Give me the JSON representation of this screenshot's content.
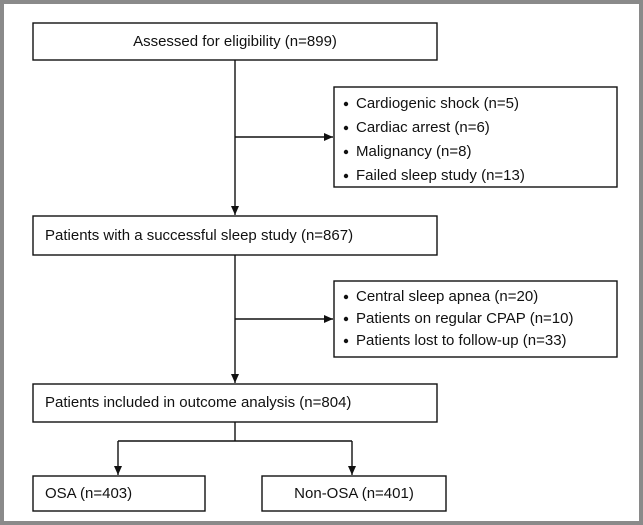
{
  "nodes": [
    {
      "label": "Assessed for eligibility (n=899)"
    },
    {
      "label": "Patients with a successful sleep study (n=867)"
    },
    {
      "label": "Patients included in outcome analysis (n=804)"
    },
    {
      "label": "OSA (n=403)"
    },
    {
      "label": "Non-OSA (n=401)"
    }
  ],
  "exclusions": [
    {
      "items": [
        "Cardiogenic shock (n=5)",
        "Cardiac arrest (n=6)",
        "Malignancy (n=8)",
        "Failed sleep study (n=13)"
      ]
    },
    {
      "items": [
        "Central sleep apnea (n=20)",
        "Patients on regular CPAP (n=10)",
        "Patients lost to follow-up (n=33)"
      ]
    }
  ]
}
